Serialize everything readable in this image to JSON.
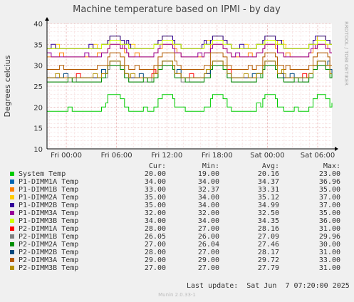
{
  "chart_data": {
    "type": "line",
    "title": "Machine temperature based on IPMI - by day",
    "ylabel": "Degrees celcius",
    "side_label": "RRDTOOL / TOBI OETIKER",
    "ylim": [
      10,
      40
    ],
    "yticks": [
      10,
      15,
      20,
      25,
      30,
      35,
      40
    ],
    "xlim_hours": [
      -2.3,
      31.7
    ],
    "xticks": [
      {
        "label": "Fri 00:00",
        "hour": 0
      },
      {
        "label": "Fri 06:00",
        "hour": 6
      },
      {
        "label": "Fri 12:00",
        "hour": 12
      },
      {
        "label": "Fri 18:00",
        "hour": 18
      },
      {
        "label": "Sat 00:00",
        "hour": 24
      },
      {
        "label": "Sat 06:00",
        "hour": 30
      }
    ],
    "peak_hours": [
      5.8,
      11.9,
      18.0,
      24.2,
      30.3
    ],
    "grid": true,
    "legend_headers": {
      "cur": "Cur:",
      "min": "Min:",
      "avg": "Avg:",
      "max": "Max:"
    },
    "series": [
      {
        "name": "System Temp",
        "color": "#00cc00",
        "cur": "20.00",
        "min": "19.00",
        "avg": "20.16",
        "max": "23.00"
      },
      {
        "name": "P1-DIMM1A Temp",
        "color": "#0066b3",
        "cur": "34.00",
        "min": "34.00",
        "avg": "34.37",
        "max": "36.96"
      },
      {
        "name": "P1-DIMM1B Temp",
        "color": "#ff8000",
        "cur": "33.00",
        "min": "32.37",
        "avg": "33.31",
        "max": "35.00"
      },
      {
        "name": "P1-DIMM2A Temp",
        "color": "#ffcc00",
        "cur": "35.00",
        "min": "34.00",
        "avg": "35.12",
        "max": "37.00"
      },
      {
        "name": "P1-DIMM2B Temp",
        "color": "#330099",
        "cur": "35.00",
        "min": "34.00",
        "avg": "34.99",
        "max": "37.00"
      },
      {
        "name": "P1-DIMM3A Temp",
        "color": "#990099",
        "cur": "32.00",
        "min": "32.00",
        "avg": "32.50",
        "max": "35.00"
      },
      {
        "name": "P1-DIMM3B Temp",
        "color": "#ccff00",
        "cur": "34.00",
        "min": "34.00",
        "avg": "34.35",
        "max": "36.00"
      },
      {
        "name": "P2-DIMM1A Temp",
        "color": "#ff0000",
        "cur": "28.00",
        "min": "27.00",
        "avg": "28.16",
        "max": "31.00"
      },
      {
        "name": "P2-DIMM1B Temp",
        "color": "#808080",
        "cur": "26.05",
        "min": "26.00",
        "avg": "27.09",
        "max": "29.96"
      },
      {
        "name": "P2-DIMM2A Temp",
        "color": "#008f00",
        "cur": "27.00",
        "min": "26.04",
        "avg": "27.46",
        "max": "30.00"
      },
      {
        "name": "P2-DIMM2B Temp",
        "color": "#00487d",
        "cur": "28.00",
        "min": "27.00",
        "avg": "28.17",
        "max": "31.00"
      },
      {
        "name": "P2-DIMM3A Temp",
        "color": "#b35a00",
        "cur": "29.00",
        "min": "29.00",
        "avg": "29.72",
        "max": "33.00"
      },
      {
        "name": "P2-DIMM3B Temp",
        "color": "#b38f00",
        "cur": "27.00",
        "min": "27.00",
        "avg": "27.79",
        "max": "31.00"
      }
    ]
  },
  "footer": {
    "last_update": "Last update:  Sat Jun  7 07:20:00 2025",
    "version": "Munin 2.0.33-1"
  }
}
